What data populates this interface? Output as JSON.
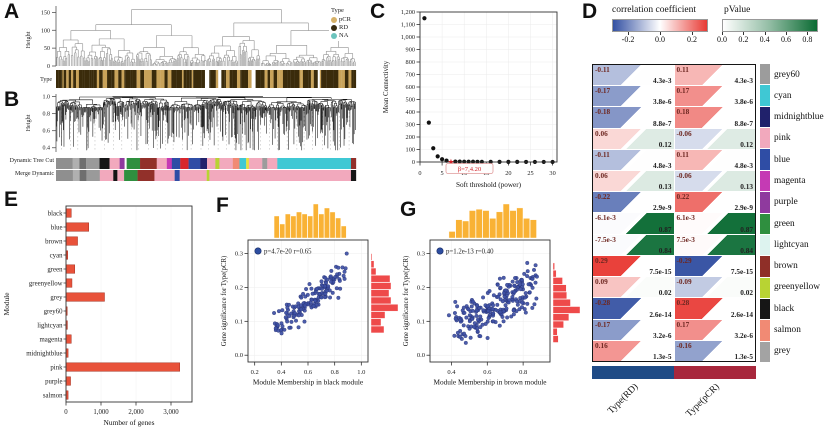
{
  "letters": {
    "A": "A",
    "B": "B",
    "C": "C",
    "D": "D",
    "E": "E",
    "F": "F",
    "G": "G"
  },
  "panelA": {
    "ylabel": "Height",
    "yticks": [
      0,
      50,
      100,
      150
    ],
    "row_label": "Type",
    "legend": {
      "title": "Type",
      "items": [
        {
          "label": "pCR",
          "color": "#d6b168"
        },
        {
          "label": "RD",
          "color": "#362a10"
        },
        {
          "label": "NA",
          "color": "#6cc4bd"
        }
      ]
    },
    "bar_colors": {
      "dark": "#3a2b0b",
      "tan": "#c9a35a",
      "gap": "#ffffff"
    }
  },
  "panelB": {
    "ylabel": "Height",
    "yticks": [
      0.4,
      0.6,
      0.8,
      1.0
    ],
    "bars": [
      {
        "label": "Dynamic Tree Cut",
        "segments": [
          {
            "c": "#8f8f8f",
            "w": 5
          },
          {
            "c": "#b0b0b0",
            "w": 2
          },
          {
            "c": "#6f6f6f",
            "w": 2
          },
          {
            "c": "#9a9a9a",
            "w": 4
          },
          {
            "c": "#161616",
            "w": 3
          },
          {
            "c": "#f2a9bd",
            "w": 3
          },
          {
            "c": "#8f3a9e",
            "w": 1.5
          },
          {
            "c": "#ffffff",
            "w": 0.6
          },
          {
            "c": "#2f8f3f",
            "w": 4
          },
          {
            "c": "#92302a",
            "w": 5
          },
          {
            "c": "#f2a9bd",
            "w": 3
          },
          {
            "c": "#c53ab4",
            "w": 1.5
          },
          {
            "c": "#2f4da5",
            "w": 2.5
          },
          {
            "c": "#d8262c",
            "w": 2.5
          },
          {
            "c": "#2f4da5",
            "w": 3.5
          },
          {
            "c": "#20216b",
            "w": 2
          },
          {
            "c": "#f2a9bd",
            "w": 2.5
          },
          {
            "c": "#b8d333",
            "w": 1.2
          },
          {
            "c": "#f2a9bd",
            "w": 4
          },
          {
            "c": "#f18a74",
            "w": 2
          },
          {
            "c": "#3fc8d4",
            "w": 2
          },
          {
            "c": "#e8e13a",
            "w": 0.8
          },
          {
            "c": "#f2a9bd",
            "w": 4
          },
          {
            "c": "#9c9c9c",
            "w": 1.5
          },
          {
            "c": "#f2a9bd",
            "w": 3
          },
          {
            "c": "#3fc8d4",
            "w": 22
          },
          {
            "c": "#92302a",
            "w": 1.5
          }
        ]
      },
      {
        "label": "Merge Dynamic",
        "segments": [
          {
            "c": "#8f8f8f",
            "w": 5
          },
          {
            "c": "#b0b0b0",
            "w": 2
          },
          {
            "c": "#6f6f6f",
            "w": 2
          },
          {
            "c": "#9a9a9a",
            "w": 4
          },
          {
            "c": "#f2a9bd",
            "w": 4
          },
          {
            "c": "#161616",
            "w": 1.2
          },
          {
            "c": "#f2a9bd",
            "w": 2
          },
          {
            "c": "#2f8f3f",
            "w": 4
          },
          {
            "c": "#92302a",
            "w": 5
          },
          {
            "c": "#f2a9bd",
            "w": 6
          },
          {
            "c": "#2f4da5",
            "w": 1.5
          },
          {
            "c": "#f2a9bd",
            "w": 8
          },
          {
            "c": "#b8d333",
            "w": 0.8
          },
          {
            "c": "#f2a9bd",
            "w": 42
          },
          {
            "c": "#161616",
            "w": 1.5
          }
        ]
      }
    ]
  },
  "chart_data": [
    {
      "id": "C",
      "type": "scatter",
      "xlabel": "Soft threshold (power)",
      "ylabel": "Mean Connectivity",
      "x": [
        1,
        2,
        3,
        4,
        5,
        6,
        7,
        8,
        9,
        10,
        11,
        12,
        13,
        14,
        16,
        18,
        20,
        22,
        24,
        26,
        28,
        30
      ],
      "y": [
        1150,
        315,
        110,
        45,
        22,
        11,
        4.2,
        3.2,
        2.8,
        2.4,
        2.1,
        1.9,
        1.7,
        1.5,
        1.2,
        1.0,
        0.9,
        0.8,
        0.7,
        0.6,
        0.55,
        0.5
      ],
      "highlight": {
        "x": 7,
        "y": 4.2,
        "label": "β=7,4.20",
        "color": "#d3242c"
      },
      "xticks": [
        0,
        5,
        10,
        15,
        20,
        25,
        30
      ],
      "yticks": [
        0,
        100,
        200,
        300,
        400,
        500,
        600,
        700,
        800,
        900,
        1000,
        1100,
        1200
      ],
      "xlim": [
        0,
        31
      ],
      "ylim": [
        0,
        1200
      ],
      "point_color": "#111111",
      "grid": true
    },
    {
      "id": "E",
      "type": "bar",
      "orientation": "horizontal",
      "xlabel": "Number of genes",
      "ylabel": "Module",
      "categories": [
        "black",
        "blue",
        "brown",
        "cyan",
        "green",
        "greenyellow",
        "grey",
        "grey60",
        "lightcyan",
        "magenta",
        "midnightblue",
        "pink",
        "purple",
        "salmon"
      ],
      "values": [
        150,
        650,
        330,
        50,
        250,
        170,
        1100,
        30,
        40,
        150,
        60,
        3250,
        130,
        60
      ],
      "xticks": [
        0,
        1000,
        2000,
        3000
      ],
      "xlim": [
        0,
        3600
      ],
      "bar_color": "#e8523a"
    },
    {
      "id": "F",
      "type": "scatter_joint",
      "xlabel": "Module Membership in black module",
      "ylabel": "Gene significance for Type(pCR)",
      "annotation": "p=4.7e-20 r=0.65",
      "r": 0.65,
      "n": 150,
      "xticks": [
        0.2,
        0.4,
        0.6,
        0.8,
        1.0
      ],
      "yticks": [
        0.0,
        0.1,
        0.2,
        0.3
      ],
      "xlim": [
        0.15,
        1.05
      ],
      "ylim": [
        -0.02,
        0.34
      ],
      "xrange": [
        0.26,
        0.9
      ],
      "yrange": [
        0.04,
        0.3
      ],
      "point_color": "#3d50a5",
      "top_hist_color": "#f9b235",
      "right_hist_color": "#ee4a4a",
      "seed": 42
    },
    {
      "id": "G",
      "type": "scatter_joint",
      "xlabel": "Module Membership in brown module",
      "ylabel": "Gene significance for Type(pCR)",
      "annotation": "p=1.2e-13 r=0.40",
      "r": 0.4,
      "n": 230,
      "xticks": [
        0.4,
        0.6,
        0.8
      ],
      "yticks": [
        0.0,
        0.1,
        0.2,
        0.3
      ],
      "xlim": [
        0.28,
        0.95
      ],
      "ylim": [
        -0.02,
        0.34
      ],
      "xrange": [
        0.33,
        0.9
      ],
      "yrange": [
        0.0,
        0.31
      ],
      "point_color": "#3d50a5",
      "top_hist_color": "#f9b235",
      "right_hist_color": "#ee4a4a",
      "seed": 7
    },
    {
      "id": "D",
      "type": "heatmap",
      "scales": {
        "corr_label": "correlation coefficient",
        "corr_ticks": [
          -0.2,
          0.0,
          0.2
        ],
        "corr_range": [
          -0.3,
          0.3
        ],
        "corr_colors": [
          "#3350a2",
          "#ffffff",
          "#e83a34"
        ],
        "pval_label": "pValue",
        "pval_ticks": [
          0.0,
          0.2,
          0.4,
          0.6,
          0.8
        ],
        "pval_range": [
          0,
          0.9
        ],
        "pval_colors": [
          "#ffffff",
          "#0b6b33"
        ]
      },
      "columns": [
        "Type(RD)",
        "Type(pCR)"
      ],
      "column_colors": [
        "#1f4b86",
        "#a8273c"
      ],
      "rows": [
        {
          "module": "grey60",
          "chip": "#9c9c9c",
          "cells": [
            {
              "corr": "-0.11",
              "pval": "4.3e-3"
            },
            {
              "corr": "0.11",
              "pval": "4.3e-3"
            }
          ]
        },
        {
          "module": "cyan",
          "chip": "#3fc8d4",
          "cells": [
            {
              "corr": "-0.17",
              "pval": "3.8e-6"
            },
            {
              "corr": "0.17",
              "pval": "3.8e-6"
            }
          ]
        },
        {
          "module": "midnightblue",
          "chip": "#20216b",
          "cells": [
            {
              "corr": "-0.18",
              "pval": "8.8e-7"
            },
            {
              "corr": "0.18",
              "pval": "8.8e-7"
            }
          ]
        },
        {
          "module": "pink",
          "chip": "#f2a9bd",
          "cells": [
            {
              "corr": "0.06",
              "pval": "0.12"
            },
            {
              "corr": "-0.06",
              "pval": "0.12"
            }
          ]
        },
        {
          "module": "blue",
          "chip": "#2f4da5",
          "cells": [
            {
              "corr": "-0.11",
              "pval": "4.8e-3"
            },
            {
              "corr": "0.11",
              "pval": "4.8e-3"
            }
          ]
        },
        {
          "module": "magenta",
          "chip": "#c53ab4",
          "cells": [
            {
              "corr": "0.06",
              "pval": "0.13"
            },
            {
              "corr": "-0.06",
              "pval": "0.13"
            }
          ]
        },
        {
          "module": "purple",
          "chip": "#8f3a9e",
          "cells": [
            {
              "corr": "-0.22",
              "pval": "2.9e-9"
            },
            {
              "corr": "0.22",
              "pval": "2.9e-9"
            }
          ]
        },
        {
          "module": "green",
          "chip": "#2f8f3f",
          "cells": [
            {
              "corr": "-6.1e-3",
              "pval": "0.87"
            },
            {
              "corr": "6.1e-3",
              "pval": "0.87"
            }
          ]
        },
        {
          "module": "lightcyan",
          "chip": "#ddf3ef",
          "cells": [
            {
              "corr": "-7.5e-3",
              "pval": "0.84"
            },
            {
              "corr": "7.5e-3",
              "pval": "0.84"
            }
          ]
        },
        {
          "module": "brown",
          "chip": "#8f2f28",
          "cells": [
            {
              "corr": "0.29",
              "pval": "7.5e-15"
            },
            {
              "corr": "-0.29",
              "pval": "7.5e-15"
            }
          ]
        },
        {
          "module": "greenyellow",
          "chip": "#b8d333",
          "cells": [
            {
              "corr": "0.09",
              "pval": "0.02"
            },
            {
              "corr": "-0.09",
              "pval": "0.02"
            }
          ]
        },
        {
          "module": "black",
          "chip": "#161616",
          "cells": [
            {
              "corr": "-0.28",
              "pval": "2.6e-14"
            },
            {
              "corr": "0.28",
              "pval": "2.6e-14"
            }
          ]
        },
        {
          "module": "salmon",
          "chip": "#f18a74",
          "cells": [
            {
              "corr": "-0.17",
              "pval": "3.2e-6"
            },
            {
              "corr": "0.17",
              "pval": "3.2e-6"
            }
          ]
        },
        {
          "module": "grey",
          "chip": "#a3a3a3",
          "cells": [
            {
              "corr": "0.16",
              "pval": "1.3e-5"
            },
            {
              "corr": "-0.16",
              "pval": "1.3e-5"
            }
          ]
        }
      ]
    }
  ]
}
